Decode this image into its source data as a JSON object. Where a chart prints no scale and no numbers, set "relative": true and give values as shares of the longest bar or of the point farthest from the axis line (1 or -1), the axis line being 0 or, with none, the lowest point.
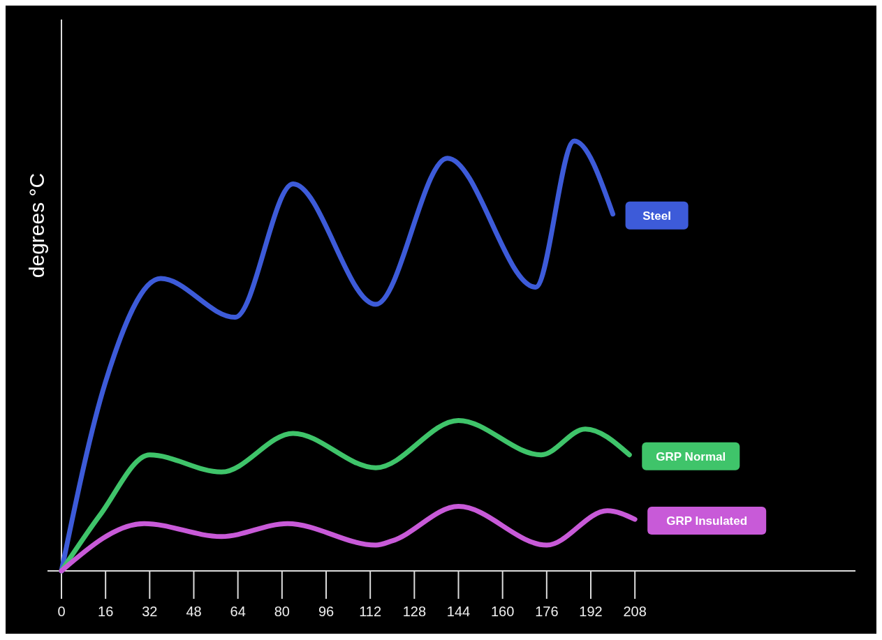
{
  "chart_data": {
    "type": "line",
    "ylabel": "degrees °C",
    "relative": true,
    "legend": false,
    "line_style": "solid",
    "marker": "none",
    "xlim": [
      0,
      288
    ],
    "xticks": [
      0,
      16,
      32,
      48,
      64,
      80,
      96,
      112,
      128,
      144,
      160,
      176,
      192,
      208
    ],
    "series": [
      {
        "name": "Steel",
        "color": "#3d5bd9",
        "x": [
          0,
          16,
          36,
          63,
          84,
          114,
          140,
          172,
          186,
          200
        ],
        "values": [
          0,
          0.44,
          0.68,
          0.59,
          0.9,
          0.62,
          0.96,
          0.66,
          1,
          0.83
        ]
      },
      {
        "name": "GRP Normal",
        "color": "#3fc46a",
        "x": [
          0,
          14,
          32,
          58,
          84,
          114,
          144,
          174,
          190,
          206
        ],
        "values": [
          0,
          0.13,
          0.27,
          0.23,
          0.32,
          0.24,
          0.35,
          0.27,
          0.33,
          0.27
        ]
      },
      {
        "name": "GRP Insulated",
        "color": "#c85ad8",
        "x": [
          0,
          30,
          58,
          82,
          114,
          120,
          144,
          176,
          198,
          208
        ],
        "values": [
          0,
          0.11,
          0.08,
          0.11,
          0.06,
          0.07,
          0.15,
          0.06,
          0.14,
          0.12
        ]
      }
    ]
  }
}
